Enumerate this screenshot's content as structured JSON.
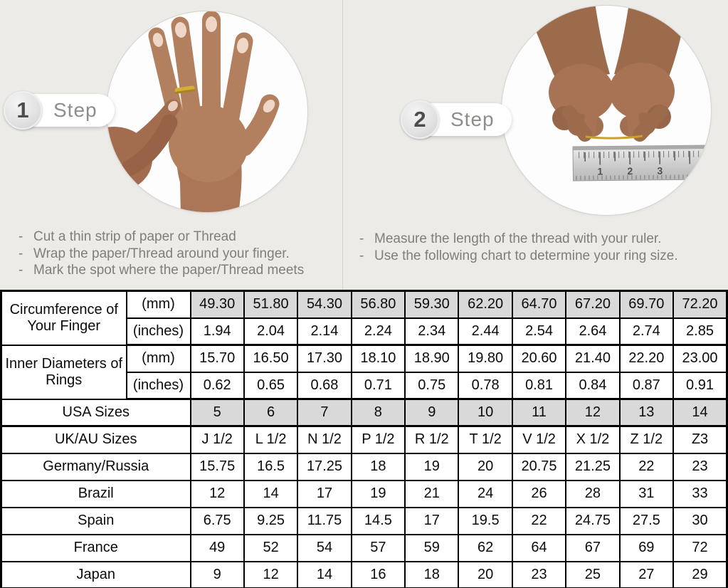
{
  "colors": {
    "page_bg": "#edebe7",
    "shaded_cell": "#d9d9d9",
    "table_border": "#000000",
    "instruction_text": "#817e79",
    "gold_thread": "#c8a12c"
  },
  "steps": [
    {
      "number": "1",
      "label": "Step",
      "photo": "hand-with-ring-photo",
      "instructions": [
        "Cut a thin strip of paper or Thread",
        "Wrap the paper/Thread around your finger.",
        "Mark the spot where the paper/Thread meets"
      ]
    },
    {
      "number": "2",
      "label": "Step",
      "photo": "measuring-thread-with-ruler-photo",
      "ruler_marks": [
        "1",
        "2",
        "3"
      ],
      "instructions": [
        "Measure the length of the thread with your ruler.",
        "Use the following chart to determine your ring size."
      ]
    }
  ],
  "size_chart": {
    "measure_groups": [
      {
        "label": "Circumference of Your Finger",
        "rows": [
          {
            "unit": "(mm)",
            "shaded": true,
            "values": [
              "49.30",
              "51.80",
              "54.30",
              "56.80",
              "59.30",
              "62.20",
              "64.70",
              "67.20",
              "69.70",
              "72.20"
            ]
          },
          {
            "unit": "(inches)",
            "shaded": false,
            "values": [
              "1.94",
              "2.04",
              "2.14",
              "2.24",
              "2.34",
              "2.44",
              "2.54",
              "2.64",
              "2.74",
              "2.85"
            ]
          }
        ]
      },
      {
        "label": "Inner Diameters of Rings",
        "rows": [
          {
            "unit": "(mm)",
            "shaded": false,
            "values": [
              "15.70",
              "16.50",
              "17.30",
              "18.10",
              "18.90",
              "19.80",
              "20.60",
              "21.40",
              "22.20",
              "23.00"
            ]
          },
          {
            "unit": "(inches)",
            "shaded": false,
            "values": [
              "0.62",
              "0.65",
              "0.68",
              "0.71",
              "0.75",
              "0.78",
              "0.81",
              "0.84",
              "0.87",
              "0.91"
            ]
          }
        ]
      }
    ],
    "size_rows": [
      {
        "label": "USA Sizes",
        "shaded": true,
        "values": [
          "5",
          "6",
          "7",
          "8",
          "9",
          "10",
          "11",
          "12",
          "13",
          "14"
        ]
      },
      {
        "label": "UK/AU Sizes",
        "shaded": false,
        "values": [
          "J 1/2",
          "L 1/2",
          "N 1/2",
          "P 1/2",
          "R 1/2",
          "T 1/2",
          "V 1/2",
          "X 1/2",
          "Z 1/2",
          "Z3"
        ]
      },
      {
        "label": "Germany/Russia",
        "shaded": false,
        "values": [
          "15.75",
          "16.5",
          "17.25",
          "18",
          "19",
          "20",
          "20.75",
          "21.25",
          "22",
          "23"
        ]
      },
      {
        "label": "Brazil",
        "shaded": false,
        "values": [
          "12",
          "14",
          "17",
          "19",
          "21",
          "24",
          "26",
          "28",
          "31",
          "33"
        ]
      },
      {
        "label": "Spain",
        "shaded": false,
        "values": [
          "6.75",
          "9.25",
          "11.75",
          "14.5",
          "17",
          "19.5",
          "22",
          "24.75",
          "27.5",
          "30"
        ]
      },
      {
        "label": "France",
        "shaded": false,
        "values": [
          "49",
          "52",
          "54",
          "57",
          "59",
          "62",
          "64",
          "67",
          "69",
          "72"
        ]
      },
      {
        "label": "Japan",
        "shaded": false,
        "values": [
          "9",
          "12",
          "14",
          "16",
          "18",
          "20",
          "23",
          "25",
          "27",
          "29"
        ]
      }
    ]
  }
}
